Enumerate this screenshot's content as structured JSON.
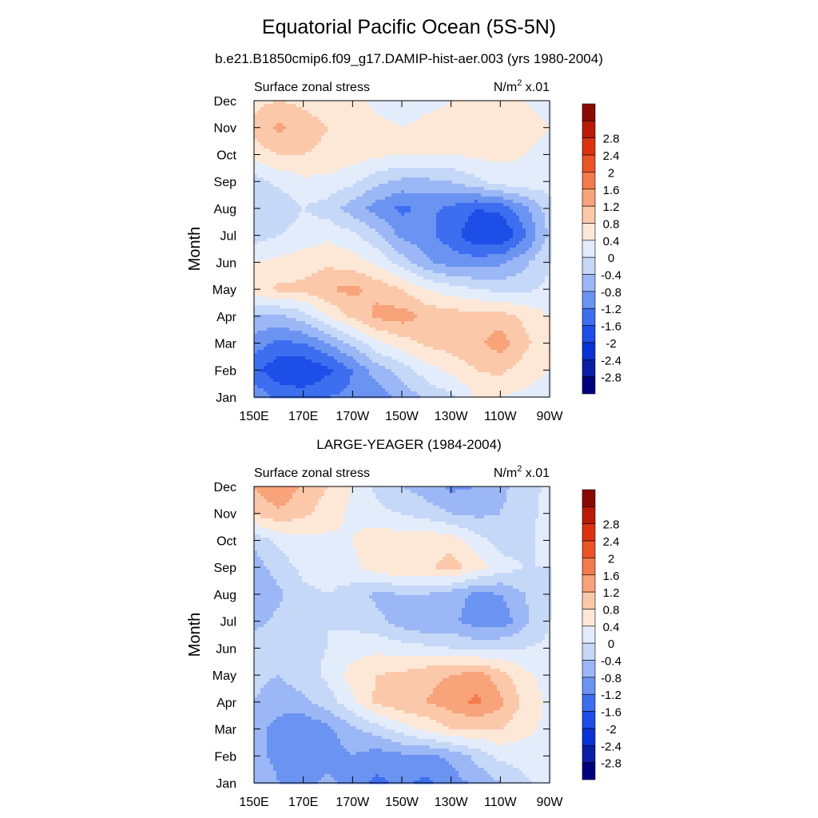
{
  "figure": {
    "title": "Equatorial Pacific Ocean (5S-5N)",
    "subtitle": "b.e21.B1850cmip6.f09_g17.DAMIP-hist-aer.003 (yrs 1980-2004)"
  },
  "colors": {
    "levels": [
      -3.2,
      -2.8,
      -2.4,
      -2.0,
      -1.6,
      -1.2,
      -0.8,
      -0.4,
      0.0,
      0.4,
      0.8,
      1.2,
      1.6,
      2.0,
      2.4,
      2.8,
      3.2
    ],
    "fills": [
      "#00007f",
      "#0a1fa5",
      "#0a33d6",
      "#1d4ee8",
      "#3d6ef0",
      "#6b93f2",
      "#9bb7f5",
      "#c6d8f8",
      "#e3ecfb",
      "#fde8d8",
      "#fbc9aa",
      "#f8a37a",
      "#f47a4d",
      "#ec5325",
      "#dc3210",
      "#b81a05",
      "#8a0a02"
    ]
  },
  "colorbar": {
    "labels": [
      "-2.8",
      "-2.4",
      "-2",
      "-1.6",
      "-1.2",
      "-0.8",
      "-0.4",
      "0",
      "0.4",
      "0.8",
      "1.2",
      "1.6",
      "2",
      "2.4",
      "2.8"
    ]
  },
  "chart_data": [
    {
      "type": "contour",
      "panel_title": "",
      "left_string": "Surface zonal stress",
      "right_string_base": "N/m",
      "right_string_exp": "2",
      "right_string_scale": " x.01",
      "ylabel": "Month",
      "xlabel": "",
      "x_ticks": [
        "150E",
        "170E",
        "170W",
        "150W",
        "130W",
        "110W",
        "90W"
      ],
      "y_ticks": [
        "Jan",
        "Feb",
        "Mar",
        "Apr",
        "May",
        "Jun",
        "Jul",
        "Aug",
        "Sep",
        "Oct",
        "Nov",
        "Dec"
      ],
      "x_lon": [
        150,
        160,
        170,
        180,
        190,
        200,
        210,
        220,
        230,
        240,
        250,
        260,
        270
      ],
      "y_month": [
        1,
        2,
        3,
        4,
        5,
        6,
        7,
        8,
        9,
        10,
        11,
        12
      ],
      "xlim": [
        150,
        270
      ],
      "ylim": [
        1,
        12
      ],
      "z": [
        [
          -0.9,
          -1.3,
          -1.4,
          -1.2,
          -1.1,
          -1.0,
          -0.7,
          -0.3,
          -0.1,
          0.4,
          0.4,
          0.3,
          0.2
        ],
        [
          -1.5,
          -1.9,
          -2.0,
          -1.7,
          -1.2,
          -0.6,
          -0.2,
          0.2,
          0.5,
          0.8,
          0.9,
          0.6,
          0.4
        ],
        [
          -1.0,
          -1.3,
          -1.2,
          -0.8,
          -0.3,
          0.3,
          0.6,
          0.9,
          1.0,
          1.1,
          1.4,
          0.9,
          0.5
        ],
        [
          -0.4,
          -0.5,
          -0.2,
          0.4,
          0.9,
          1.3,
          1.4,
          1.1,
          1.0,
          1.0,
          1.0,
          0.7,
          0.4
        ],
        [
          0.6,
          0.9,
          0.9,
          1.2,
          1.3,
          1.1,
          0.8,
          0.4,
          0.2,
          0.0,
          -0.1,
          -0.1,
          0.1
        ],
        [
          0.4,
          0.5,
          0.6,
          0.7,
          0.6,
          0.3,
          -0.2,
          -0.7,
          -1.0,
          -1.0,
          -0.9,
          -0.5,
          0.0
        ],
        [
          -0.2,
          0.0,
          0.2,
          0.3,
          0.1,
          -0.3,
          -0.9,
          -1.1,
          -1.4,
          -1.9,
          -2.0,
          -1.3,
          -0.3
        ],
        [
          -0.4,
          -0.3,
          0.0,
          -0.2,
          -0.6,
          -1.0,
          -1.3,
          -1.1,
          -1.3,
          -1.6,
          -1.5,
          -0.9,
          -0.2
        ],
        [
          -0.2,
          0.1,
          0.3,
          0.3,
          0.1,
          -0.3,
          -0.5,
          -0.5,
          -0.4,
          -0.1,
          0.2,
          0.3,
          0.2
        ],
        [
          0.6,
          0.8,
          0.8,
          0.7,
          0.6,
          0.5,
          0.4,
          0.4,
          0.4,
          0.5,
          0.5,
          0.4,
          0.3
        ],
        [
          0.9,
          1.3,
          1.0,
          0.8,
          0.7,
          0.5,
          0.4,
          0.5,
          0.5,
          0.6,
          0.6,
          0.5,
          0.4
        ],
        [
          0.7,
          0.8,
          0.7,
          0.6,
          0.5,
          0.3,
          0.2,
          0.3,
          0.4,
          0.5,
          0.5,
          0.4,
          0.3
        ]
      ]
    },
    {
      "type": "contour",
      "panel_title": "LARGE-YEAGER (1984-2004)",
      "left_string": "Surface zonal stress",
      "right_string_base": "N/m",
      "right_string_exp": "2",
      "right_string_scale": " x.01",
      "ylabel": "Month",
      "xlabel": "",
      "x_ticks": [
        "150E",
        "170E",
        "170W",
        "150W",
        "130W",
        "110W",
        "90W"
      ],
      "y_ticks": [
        "Jan",
        "Feb",
        "Mar",
        "Apr",
        "May",
        "Jun",
        "Jul",
        "Aug",
        "Sep",
        "Oct",
        "Nov",
        "Dec"
      ],
      "x_lon": [
        150,
        160,
        170,
        180,
        190,
        200,
        210,
        220,
        230,
        240,
        250,
        260,
        270
      ],
      "y_month": [
        1,
        2,
        3,
        4,
        5,
        6,
        7,
        8,
        9,
        10,
        11,
        12
      ],
      "xlim": [
        150,
        270
      ],
      "ylim": [
        1,
        12
      ],
      "z": [
        [
          -0.5,
          -0.8,
          -0.9,
          -0.7,
          -1.0,
          -1.3,
          -1.1,
          -1.3,
          -1.0,
          -0.7,
          -0.4,
          -0.1,
          0.2
        ],
        [
          -0.7,
          -0.9,
          -1.0,
          -1.0,
          -0.8,
          -1.0,
          -0.9,
          -0.9,
          -0.7,
          -0.3,
          0.1,
          0.2,
          0.3
        ],
        [
          -0.6,
          -1.0,
          -1.2,
          -0.9,
          -0.5,
          -0.2,
          0.2,
          0.5,
          0.8,
          0.8,
          0.8,
          0.5,
          0.3
        ],
        [
          -0.4,
          -0.6,
          -0.5,
          -0.2,
          0.3,
          0.9,
          1.1,
          1.2,
          1.4,
          1.7,
          1.3,
          0.7,
          0.3
        ],
        [
          -0.3,
          -0.4,
          -0.2,
          0.1,
          0.6,
          0.8,
          0.9,
          1.1,
          1.2,
          1.4,
          1.0,
          0.5,
          0.2
        ],
        [
          -0.2,
          -0.3,
          -0.1,
          0.0,
          0.2,
          0.3,
          0.2,
          0.1,
          0.0,
          -0.1,
          0.0,
          0.0,
          0.1
        ],
        [
          -0.5,
          -0.3,
          -0.1,
          0.0,
          -0.1,
          -0.3,
          -0.6,
          -0.8,
          -0.7,
          -1.0,
          -1.1,
          -0.5,
          0.0
        ],
        [
          -0.8,
          -0.5,
          -0.1,
          0.0,
          -0.2,
          -0.5,
          -0.4,
          -0.4,
          -0.6,
          -0.9,
          -0.8,
          -0.4,
          -0.1
        ],
        [
          -0.6,
          -0.2,
          0.1,
          0.2,
          0.3,
          0.6,
          0.8,
          0.7,
          1.0,
          0.6,
          0.2,
          0.0,
          0.0
        ],
        [
          -0.3,
          0.1,
          0.3,
          0.3,
          0.4,
          0.7,
          0.6,
          0.7,
          0.6,
          0.2,
          -0.2,
          -0.2,
          0.3
        ],
        [
          0.9,
          1.1,
          0.9,
          0.6,
          0.3,
          0.1,
          0.0,
          -0.2,
          -0.4,
          -0.5,
          -0.4,
          -0.2,
          0.2
        ],
        [
          1.2,
          1.6,
          1.1,
          0.8,
          0.4,
          -0.1,
          -0.4,
          -0.6,
          -0.9,
          -0.8,
          -0.5,
          -0.2,
          0.1
        ]
      ]
    }
  ]
}
